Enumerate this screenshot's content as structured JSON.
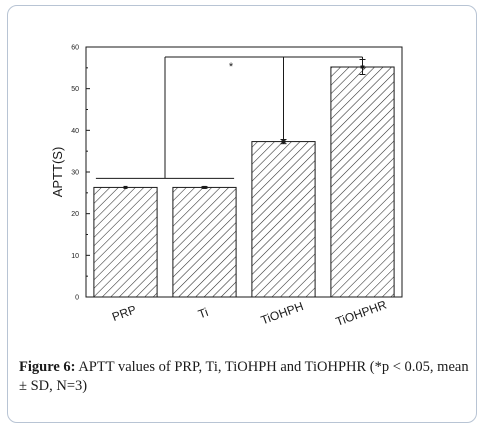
{
  "chart_data": {
    "type": "bar",
    "categories": [
      "PRP",
      "Ti",
      "TiOHPH",
      "TiOHPHR"
    ],
    "values": [
      26.3,
      26.3,
      37.3,
      55.2
    ],
    "errors": [
      0,
      0.2,
      0.5,
      1.8
    ],
    "title": "",
    "xlabel": "",
    "ylabel": "APTT(S)",
    "ylim": [
      0,
      60
    ],
    "yticks": [
      0,
      10,
      20,
      30,
      40,
      50,
      60
    ],
    "ytick_labels": [
      "0",
      "10",
      "20",
      "30",
      "40",
      "50",
      "60"
    ],
    "grid": false,
    "bar_fill": "hatched",
    "significance": [
      {
        "from": "PRP-Ti",
        "to": "TiOHPH",
        "label": ""
      },
      {
        "from": "PRP-Ti",
        "to": "TiOHPHR",
        "label": "*"
      }
    ]
  },
  "caption": {
    "label": "Figure 6:",
    "text": " APTT values of PRP, Ti, TiOHPH and TiOHPHR (*p < 0.05, mean ± SD, N=3)"
  },
  "colors": {
    "frame_border": "#b8c4d4",
    "ink": "#1a1a1a"
  }
}
